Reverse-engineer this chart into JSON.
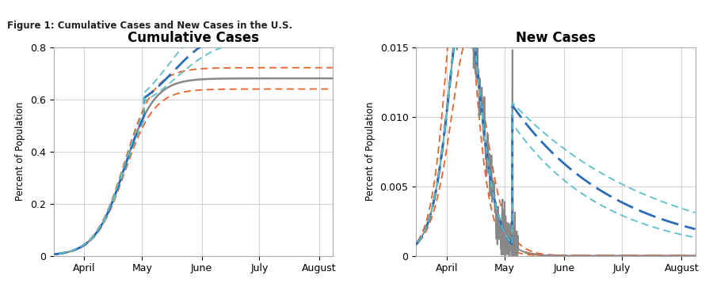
{
  "figure_label": "Figure 1: Cumulative Cases and New Cases in the U.S.",
  "figure_label_color": "#222222",
  "header_bar_color": "#5BB8C1",
  "background_color": "#ffffff",
  "left_title": "Cumulative Cases",
  "right_title": "New Cases",
  "ylabel": "Percent of Population",
  "x_tick_labels": [
    "April",
    "May",
    "June",
    "July",
    "August"
  ],
  "x_tick_positions": [
    31,
    61,
    92,
    122,
    153
  ],
  "cum_ylim": [
    0,
    0.8
  ],
  "cum_yticks": [
    0,
    0.2,
    0.4,
    0.6,
    0.8
  ],
  "new_ylim": [
    0,
    0.015
  ],
  "new_yticks": [
    0,
    0.005,
    0.01,
    0.015
  ],
  "orange_color": "#E8622A",
  "blue_color": "#2B6CB8",
  "teal_color": "#5BBFCA",
  "gray_color": "#888888",
  "grid_color": "#cccccc",
  "spine_color": "#aaaaaa"
}
